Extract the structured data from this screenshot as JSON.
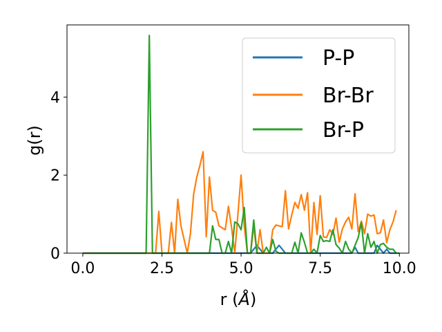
{
  "chart_data": {
    "type": "line",
    "xlabel_text": "r (",
    "xlabel_unit": "Å",
    "xlabel_close": ")",
    "ylabel": "g(r)",
    "xlim": [
      -0.5,
      10.3
    ],
    "ylim": [
      0,
      5.85
    ],
    "xticks": [
      0.0,
      2.5,
      5.0,
      7.5,
      10.0
    ],
    "xtick_labels": [
      "0.0",
      "2.5",
      "5.0",
      "7.5",
      "10.0"
    ],
    "yticks": [
      0,
      2,
      4
    ],
    "ytick_labels": [
      "0",
      "2",
      "4"
    ],
    "grid": false,
    "legend_position": "top-right",
    "series": [
      {
        "name": "P-P",
        "color": "#1f77b4",
        "x": [
          0.0,
          5.3,
          5.5,
          5.7,
          6.0,
          6.2,
          6.4,
          8.5,
          8.6,
          8.7,
          9.2,
          9.3,
          9.5,
          9.6,
          9.7,
          9.9
        ],
        "y": [
          0.0,
          0.0,
          0.2,
          0.0,
          0.0,
          0.2,
          0.0,
          0.0,
          0.15,
          0.0,
          0.0,
          0.2,
          0.0,
          0.1,
          0.0,
          0.0
        ]
      },
      {
        "name": "Br-Br",
        "color": "#ff7f0e",
        "x": [
          0.0,
          2.3,
          2.4,
          2.5,
          2.7,
          2.8,
          2.9,
          3.0,
          3.1,
          3.3,
          3.4,
          3.5,
          3.6,
          3.7,
          3.8,
          3.9,
          4.0,
          4.1,
          4.2,
          4.3,
          4.4,
          4.5,
          4.6,
          4.7,
          4.8,
          5.0,
          5.1,
          5.2,
          5.3,
          5.4,
          5.5,
          5.6,
          5.7,
          5.8,
          5.9,
          6.0,
          6.1,
          6.2,
          6.3,
          6.4,
          6.5,
          6.6,
          6.7,
          6.8,
          6.9,
          7.0,
          7.1,
          7.2,
          7.3,
          7.4,
          7.5,
          7.6,
          7.7,
          7.8,
          7.9,
          8.0,
          8.1,
          8.2,
          8.3,
          8.4,
          8.5,
          8.6,
          8.7,
          8.8,
          8.9,
          9.0,
          9.1,
          9.2,
          9.3,
          9.4,
          9.5,
          9.6,
          9.7,
          9.8,
          9.9
        ],
        "y": [
          0.0,
          0.0,
          1.07,
          0.0,
          0.0,
          0.79,
          0.0,
          1.38,
          0.7,
          0.0,
          0.5,
          1.5,
          1.95,
          2.25,
          2.6,
          0.42,
          1.95,
          1.1,
          1.05,
          0.7,
          0.65,
          0.6,
          1.2,
          0.65,
          0.0,
          2.0,
          0.7,
          0.0,
          0.0,
          0.7,
          0.0,
          0.6,
          0.0,
          0.0,
          0.0,
          0.6,
          0.72,
          0.7,
          0.68,
          1.6,
          0.62,
          0.98,
          1.3,
          1.15,
          1.5,
          1.1,
          1.55,
          0.0,
          1.3,
          0.48,
          1.47,
          0.42,
          0.4,
          0.6,
          0.48,
          0.9,
          0.28,
          0.62,
          0.8,
          0.92,
          0.62,
          1.52,
          0.55,
          0.82,
          0.5,
          1.0,
          0.95,
          0.98,
          0.5,
          0.52,
          0.85,
          0.27,
          0.6,
          0.8,
          1.1
        ]
      },
      {
        "name": "Br-P",
        "color": "#2ca02c",
        "x": [
          0.0,
          2.0,
          2.1,
          2.2,
          4.0,
          4.1,
          4.2,
          4.3,
          4.4,
          4.5,
          4.6,
          4.7,
          4.8,
          4.9,
          5.0,
          5.1,
          5.2,
          5.3,
          5.4,
          5.5,
          5.6,
          5.7,
          5.8,
          5.9,
          6.0,
          6.1,
          6.2,
          6.3,
          6.6,
          6.7,
          6.8,
          6.9,
          7.0,
          7.1,
          7.2,
          7.3,
          7.4,
          7.5,
          7.6,
          7.7,
          7.8,
          7.9,
          8.0,
          8.1,
          8.2,
          8.3,
          8.4,
          8.5,
          8.6,
          8.7,
          8.8,
          8.9,
          9.0,
          9.1,
          9.2,
          9.3,
          9.4,
          9.5,
          9.6,
          9.7,
          9.8,
          9.9,
          10.0
        ],
        "y": [
          0.0,
          0.0,
          5.58,
          0.0,
          0.0,
          0.7,
          0.35,
          0.35,
          0.0,
          0.0,
          0.3,
          0.0,
          0.8,
          0.75,
          0.6,
          1.17,
          0.0,
          0.0,
          0.85,
          0.0,
          0.0,
          0.0,
          0.15,
          0.0,
          0.35,
          0.05,
          0.0,
          0.0,
          0.0,
          0.28,
          0.0,
          0.52,
          0.28,
          0.0,
          0.0,
          0.1,
          0.0,
          0.45,
          0.3,
          0.32,
          0.3,
          0.6,
          0.22,
          0.13,
          0.0,
          0.3,
          0.1,
          0.0,
          0.2,
          0.4,
          0.78,
          0.0,
          0.5,
          0.15,
          0.3,
          0.0,
          0.22,
          0.25,
          0.15,
          0.1,
          0.1,
          0.0,
          0.0
        ]
      }
    ]
  }
}
